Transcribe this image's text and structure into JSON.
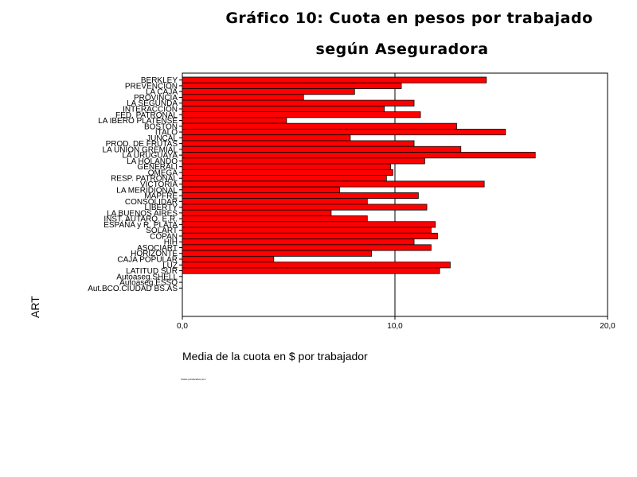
{
  "title_line1": "Gráfico 10: Cuota en pesos por trabajado",
  "title_line2": "según Aseguradora",
  "footnote": "Casos ponderados por t",
  "chart_data": {
    "type": "bar",
    "orientation": "horizontal",
    "xlabel": "Media de la cuota en $ por trabajador",
    "ylabel": "ART",
    "xlim": [
      0,
      20
    ],
    "xticks": [
      "0,0",
      "10,0",
      "20,0"
    ],
    "reference_line": 10,
    "bar_color": "#ff0000",
    "categories": [
      "BERKLEY",
      "PREVENCION",
      "LA CAJA",
      "PROVINCIA",
      "LA SEGUNDA",
      "INTERACCION",
      "FED. PATRONAL",
      "LA IBERO PLATENSE",
      "BOSTON",
      "ITALO",
      "JUNCAL",
      "PROD. DE FRUTAS",
      "LA UNION GREMIAL",
      "LA URUGUAYA",
      "LA HOLANDO",
      "GENERALI",
      "OMEGA",
      "RESP. PATRONAL",
      "VICTORIA",
      "LA MERIDIONAL",
      "MAPFRE",
      "CONSOLIDAR",
      "LIBERTY",
      "LA BUENOS AIRES",
      "INST. AUTARQ. E.R.",
      "ESPAÑA y R. PLATA",
      "SOLART",
      "COPAN",
      "HIH",
      "ASOCIART",
      "HORIZONTE",
      "CAJA POPULAR",
      "LUZ",
      "LATITUD SUR",
      "Autoaseg.SHELL",
      "Autoaseg.ESSO",
      "Aut.BCO.CIUDAD BS.AS"
    ],
    "values": [
      14.3,
      10.3,
      8.1,
      5.7,
      10.9,
      9.5,
      11.2,
      4.9,
      12.9,
      15.2,
      7.9,
      10.9,
      13.1,
      16.6,
      11.4,
      9.8,
      9.9,
      9.6,
      14.2,
      7.4,
      11.1,
      8.7,
      11.5,
      7.0,
      8.7,
      11.9,
      11.7,
      12.0,
      10.9,
      11.7,
      8.9,
      4.3,
      12.6,
      12.1,
      0,
      0,
      0
    ]
  }
}
